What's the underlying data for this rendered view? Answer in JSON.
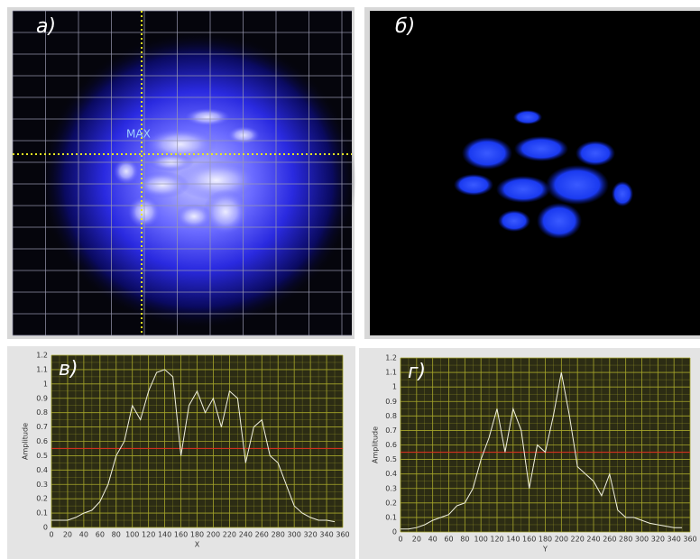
{
  "images": [
    {
      "label": "а)",
      "marker": "MAX"
    },
    {
      "label": "б)"
    }
  ],
  "chart_data": [
    {
      "type": "line",
      "annotation": "в)",
      "xlabel": "X",
      "ylabel": "Amplitude",
      "x": [
        0,
        10,
        20,
        30,
        40,
        50,
        60,
        70,
        80,
        90,
        100,
        110,
        120,
        130,
        140,
        150,
        160,
        170,
        180,
        190,
        200,
        210,
        220,
        230,
        240,
        250,
        260,
        270,
        280,
        290,
        300,
        310,
        320,
        330,
        340,
        350
      ],
      "values": [
        0.05,
        0.05,
        0.05,
        0.07,
        0.1,
        0.12,
        0.18,
        0.3,
        0.5,
        0.6,
        0.85,
        0.75,
        0.95,
        1.08,
        1.1,
        1.05,
        0.5,
        0.85,
        0.95,
        0.8,
        0.9,
        0.7,
        0.95,
        0.9,
        0.45,
        0.7,
        0.75,
        0.5,
        0.45,
        0.3,
        0.15,
        0.1,
        0.07,
        0.05,
        0.05,
        0.04
      ],
      "color": "#f2f2e0",
      "threshold": 0.55,
      "threshold_color": "#d03020",
      "xlim": [
        0,
        360
      ],
      "xticks": [
        0,
        20,
        40,
        60,
        80,
        100,
        120,
        140,
        160,
        180,
        200,
        220,
        240,
        260,
        280,
        300,
        320,
        340,
        360
      ],
      "ylim": [
        0,
        1.2
      ],
      "yticks": [
        0,
        0.1,
        0.2,
        0.3,
        0.4,
        0.5,
        0.6,
        0.7,
        0.8,
        0.9,
        1,
        1.1,
        1.2
      ],
      "grid": true,
      "grid_color": "#a6a62a"
    },
    {
      "type": "line",
      "annotation": "г)",
      "xlabel": "Y",
      "ylabel": "Amplitude",
      "x": [
        0,
        10,
        20,
        30,
        40,
        50,
        60,
        70,
        80,
        90,
        100,
        110,
        120,
        130,
        140,
        150,
        160,
        170,
        180,
        190,
        200,
        210,
        220,
        230,
        240,
        250,
        260,
        270,
        280,
        290,
        300,
        310,
        320,
        330,
        340,
        350
      ],
      "values": [
        0.02,
        0.02,
        0.03,
        0.05,
        0.08,
        0.1,
        0.12,
        0.18,
        0.2,
        0.3,
        0.5,
        0.65,
        0.85,
        0.55,
        0.85,
        0.7,
        0.3,
        0.6,
        0.55,
        0.8,
        1.1,
        0.8,
        0.45,
        0.4,
        0.35,
        0.25,
        0.4,
        0.15,
        0.1,
        0.1,
        0.08,
        0.06,
        0.05,
        0.04,
        0.03,
        0.03
      ],
      "color": "#f2f2e0",
      "threshold": 0.55,
      "threshold_color": "#d03020",
      "xlim": [
        0,
        360
      ],
      "xticks": [
        0,
        20,
        40,
        60,
        80,
        100,
        120,
        140,
        160,
        180,
        200,
        220,
        240,
        260,
        280,
        300,
        320,
        340,
        360
      ],
      "ylim": [
        0,
        1.2
      ],
      "yticks": [
        0,
        0.1,
        0.2,
        0.3,
        0.4,
        0.5,
        0.6,
        0.7,
        0.8,
        0.9,
        1,
        1.1,
        1.2
      ],
      "grid": true,
      "grid_color": "#a6a62a"
    }
  ]
}
